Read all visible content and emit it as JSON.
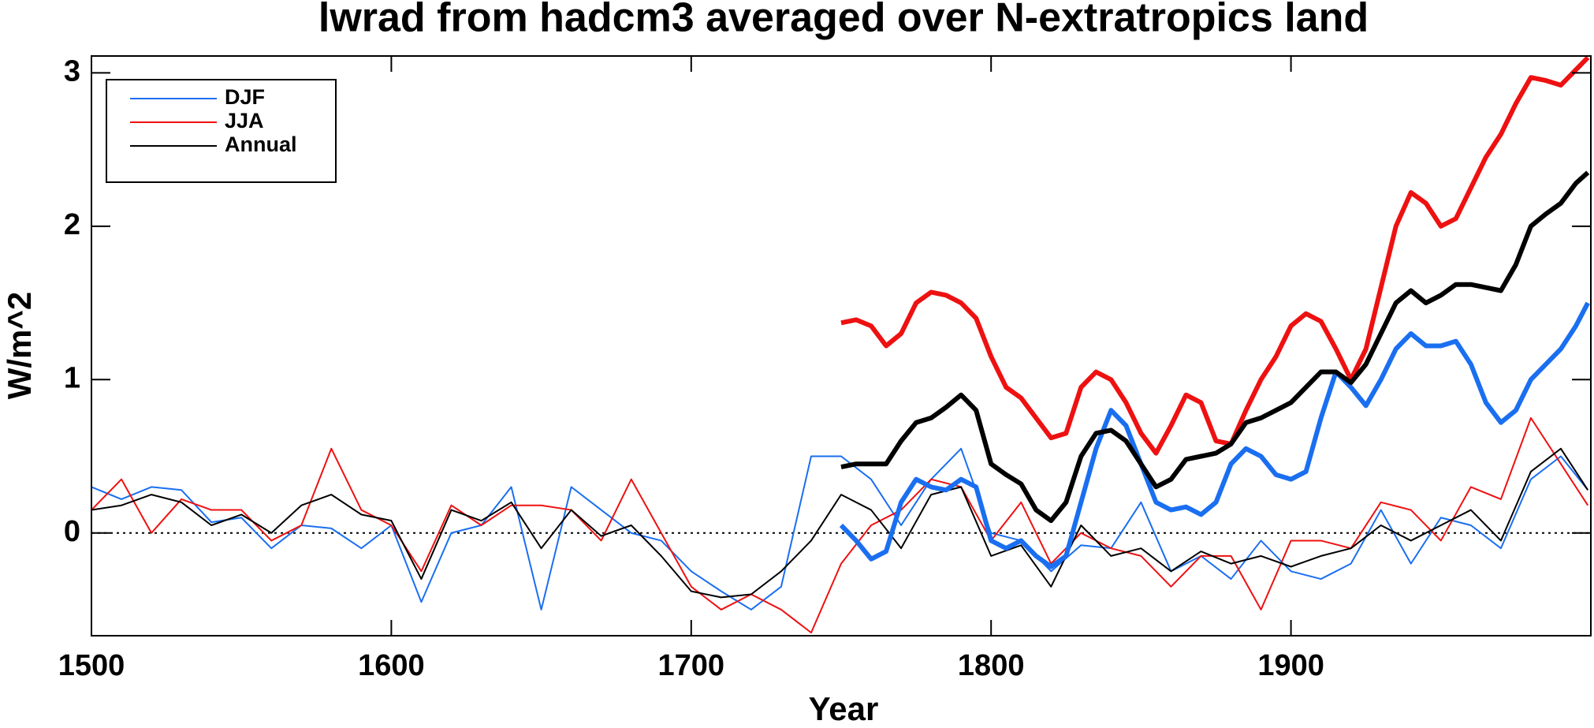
{
  "chart_data": {
    "type": "line",
    "title": "lwrad from hadcm3 averaged over N-extratropics land",
    "x_label": "Year",
    "y_label": "W/m^2",
    "xlim": [
      1500,
      2000
    ],
    "ylim": [
      -0.67,
      3.11
    ],
    "xticks": [
      1500,
      1600,
      1700,
      1800,
      1900
    ],
    "yticks": [
      0,
      1,
      2,
      3
    ],
    "reference_line": 0,
    "legend": "upper left",
    "series": [
      {
        "name": "DJF",
        "color": "#1a6ff0",
        "line_width": 2,
        "x": [
          1500,
          1510,
          1520,
          1530,
          1540,
          1550,
          1560,
          1570,
          1580,
          1590,
          1600,
          1610,
          1620,
          1630,
          1640,
          1650,
          1660,
          1670,
          1680,
          1690,
          1700,
          1710,
          1720,
          1730,
          1740,
          1750,
          1760,
          1770,
          1780,
          1790,
          1800,
          1810,
          1820,
          1830,
          1840,
          1850,
          1860,
          1870,
          1880,
          1890,
          1900,
          1910,
          1920,
          1930,
          1940,
          1950,
          1960,
          1970,
          1980,
          1990,
          1999
        ],
        "values": [
          0.3,
          0.22,
          0.3,
          0.28,
          0.07,
          0.1,
          -0.1,
          0.05,
          0.03,
          -0.1,
          0.05,
          -0.45,
          0.0,
          0.05,
          0.3,
          -0.5,
          0.3,
          0.15,
          0.0,
          -0.05,
          -0.25,
          -0.38,
          -0.5,
          -0.35,
          0.5,
          0.5,
          0.35,
          0.05,
          0.35,
          0.55,
          0.0,
          -0.05,
          -0.25,
          -0.08,
          -0.1,
          0.2,
          -0.25,
          -0.15,
          -0.3,
          -0.05,
          -0.25,
          -0.3,
          -0.2,
          0.15,
          -0.2,
          0.1,
          0.05,
          -0.1,
          0.35,
          0.5,
          0.28
        ]
      },
      {
        "name": "JJA",
        "color": "#ee1111",
        "line_width": 2,
        "x": [
          1500,
          1510,
          1520,
          1530,
          1540,
          1550,
          1560,
          1570,
          1580,
          1590,
          1600,
          1610,
          1620,
          1630,
          1640,
          1650,
          1660,
          1670,
          1680,
          1690,
          1700,
          1710,
          1720,
          1730,
          1740,
          1750,
          1760,
          1770,
          1780,
          1790,
          1800,
          1810,
          1820,
          1830,
          1840,
          1850,
          1860,
          1870,
          1880,
          1890,
          1900,
          1910,
          1920,
          1930,
          1940,
          1950,
          1960,
          1970,
          1980,
          1990,
          1999
        ],
        "values": [
          0.15,
          0.35,
          0.0,
          0.22,
          0.15,
          0.15,
          -0.05,
          0.05,
          0.55,
          0.15,
          0.05,
          -0.25,
          0.18,
          0.05,
          0.18,
          0.18,
          0.15,
          -0.05,
          0.35,
          0.0,
          -0.35,
          -0.5,
          -0.4,
          -0.5,
          -0.65,
          -0.2,
          0.05,
          0.15,
          0.35,
          0.3,
          -0.05,
          0.2,
          -0.2,
          0.0,
          -0.1,
          -0.15,
          -0.35,
          -0.15,
          -0.15,
          -0.5,
          -0.05,
          -0.05,
          -0.1,
          0.2,
          0.15,
          -0.05,
          0.3,
          0.22,
          0.75,
          0.45,
          0.18
        ]
      },
      {
        "name": "Annual",
        "color": "#000000",
        "line_width": 2,
        "x": [
          1500,
          1510,
          1520,
          1530,
          1540,
          1550,
          1560,
          1570,
          1580,
          1590,
          1600,
          1610,
          1620,
          1630,
          1640,
          1650,
          1660,
          1670,
          1680,
          1690,
          1700,
          1710,
          1720,
          1730,
          1740,
          1750,
          1760,
          1770,
          1780,
          1790,
          1800,
          1810,
          1820,
          1830,
          1840,
          1850,
          1860,
          1870,
          1880,
          1890,
          1900,
          1910,
          1920,
          1930,
          1940,
          1950,
          1960,
          1970,
          1980,
          1990,
          1999
        ],
        "values": [
          0.15,
          0.18,
          0.25,
          0.2,
          0.05,
          0.12,
          0.0,
          0.18,
          0.25,
          0.12,
          0.08,
          -0.3,
          0.15,
          0.08,
          0.2,
          -0.1,
          0.15,
          -0.02,
          0.05,
          -0.15,
          -0.38,
          -0.42,
          -0.4,
          -0.25,
          -0.05,
          0.25,
          0.15,
          -0.1,
          0.25,
          0.3,
          -0.15,
          -0.08,
          -0.35,
          0.05,
          -0.15,
          -0.1,
          -0.25,
          -0.12,
          -0.2,
          -0.15,
          -0.22,
          -0.15,
          -0.1,
          0.05,
          -0.05,
          0.05,
          0.15,
          -0.05,
          0.4,
          0.55,
          0.28
        ]
      },
      {
        "color": "#1a6ff0",
        "line_width": 6,
        "x": [
          1750,
          1755,
          1760,
          1765,
          1770,
          1775,
          1780,
          1785,
          1790,
          1795,
          1800,
          1805,
          1810,
          1815,
          1820,
          1825,
          1830,
          1835,
          1840,
          1845,
          1850,
          1855,
          1860,
          1865,
          1870,
          1875,
          1880,
          1885,
          1890,
          1895,
          1900,
          1905,
          1910,
          1915,
          1920,
          1925,
          1930,
          1935,
          1940,
          1945,
          1950,
          1955,
          1960,
          1965,
          1970,
          1975,
          1980,
          1985,
          1990,
          1995,
          1999
        ],
        "values": [
          0.05,
          -0.05,
          -0.17,
          -0.12,
          0.2,
          0.35,
          0.3,
          0.28,
          0.35,
          0.3,
          -0.05,
          -0.1,
          -0.05,
          -0.15,
          -0.22,
          -0.15,
          0.2,
          0.55,
          0.8,
          0.7,
          0.45,
          0.2,
          0.15,
          0.17,
          0.12,
          0.2,
          0.45,
          0.55,
          0.5,
          0.38,
          0.35,
          0.4,
          0.75,
          1.05,
          0.95,
          0.83,
          1.0,
          1.2,
          1.3,
          1.22,
          1.22,
          1.25,
          1.1,
          0.85,
          0.72,
          0.8,
          1.0,
          1.1,
          1.2,
          1.35,
          1.5
        ]
      },
      {
        "color": "#ee1111",
        "line_width": 6,
        "x": [
          1750,
          1755,
          1760,
          1765,
          1770,
          1775,
          1780,
          1785,
          1790,
          1795,
          1800,
          1805,
          1810,
          1815,
          1820,
          1825,
          1830,
          1835,
          1840,
          1845,
          1850,
          1855,
          1860,
          1865,
          1870,
          1875,
          1880,
          1885,
          1890,
          1895,
          1900,
          1905,
          1910,
          1915,
          1920,
          1925,
          1930,
          1935,
          1940,
          1945,
          1950,
          1955,
          1960,
          1965,
          1970,
          1975,
          1980,
          1985,
          1990,
          1995,
          1999
        ],
        "values": [
          1.37,
          1.39,
          1.35,
          1.22,
          1.3,
          1.5,
          1.57,
          1.55,
          1.5,
          1.4,
          1.15,
          0.95,
          0.88,
          0.75,
          0.62,
          0.65,
          0.95,
          1.05,
          1.0,
          0.85,
          0.65,
          0.52,
          0.7,
          0.9,
          0.85,
          0.6,
          0.58,
          0.8,
          1.0,
          1.15,
          1.35,
          1.43,
          1.38,
          1.2,
          1.0,
          1.2,
          1.6,
          2.0,
          2.22,
          2.15,
          2.0,
          2.05,
          2.25,
          2.45,
          2.6,
          2.8,
          2.97,
          2.95,
          2.92,
          3.02,
          3.1
        ]
      },
      {
        "color": "#000000",
        "line_width": 6,
        "x": [
          1750,
          1755,
          1760,
          1765,
          1770,
          1775,
          1780,
          1785,
          1790,
          1795,
          1800,
          1805,
          1810,
          1815,
          1820,
          1825,
          1830,
          1835,
          1840,
          1845,
          1850,
          1855,
          1860,
          1865,
          1870,
          1875,
          1880,
          1885,
          1890,
          1895,
          1900,
          1905,
          1910,
          1915,
          1920,
          1925,
          1930,
          1935,
          1940,
          1945,
          1950,
          1955,
          1960,
          1965,
          1970,
          1975,
          1980,
          1985,
          1990,
          1995,
          1999
        ],
        "values": [
          0.43,
          0.45,
          0.45,
          0.45,
          0.6,
          0.72,
          0.75,
          0.82,
          0.9,
          0.8,
          0.45,
          0.38,
          0.32,
          0.15,
          0.08,
          0.2,
          0.5,
          0.65,
          0.67,
          0.6,
          0.45,
          0.3,
          0.35,
          0.48,
          0.5,
          0.52,
          0.58,
          0.72,
          0.75,
          0.8,
          0.85,
          0.95,
          1.05,
          1.05,
          0.98,
          1.1,
          1.3,
          1.5,
          1.58,
          1.5,
          1.55,
          1.62,
          1.62,
          1.6,
          1.58,
          1.75,
          2.0,
          2.08,
          2.15,
          2.28,
          2.35
        ]
      }
    ]
  }
}
